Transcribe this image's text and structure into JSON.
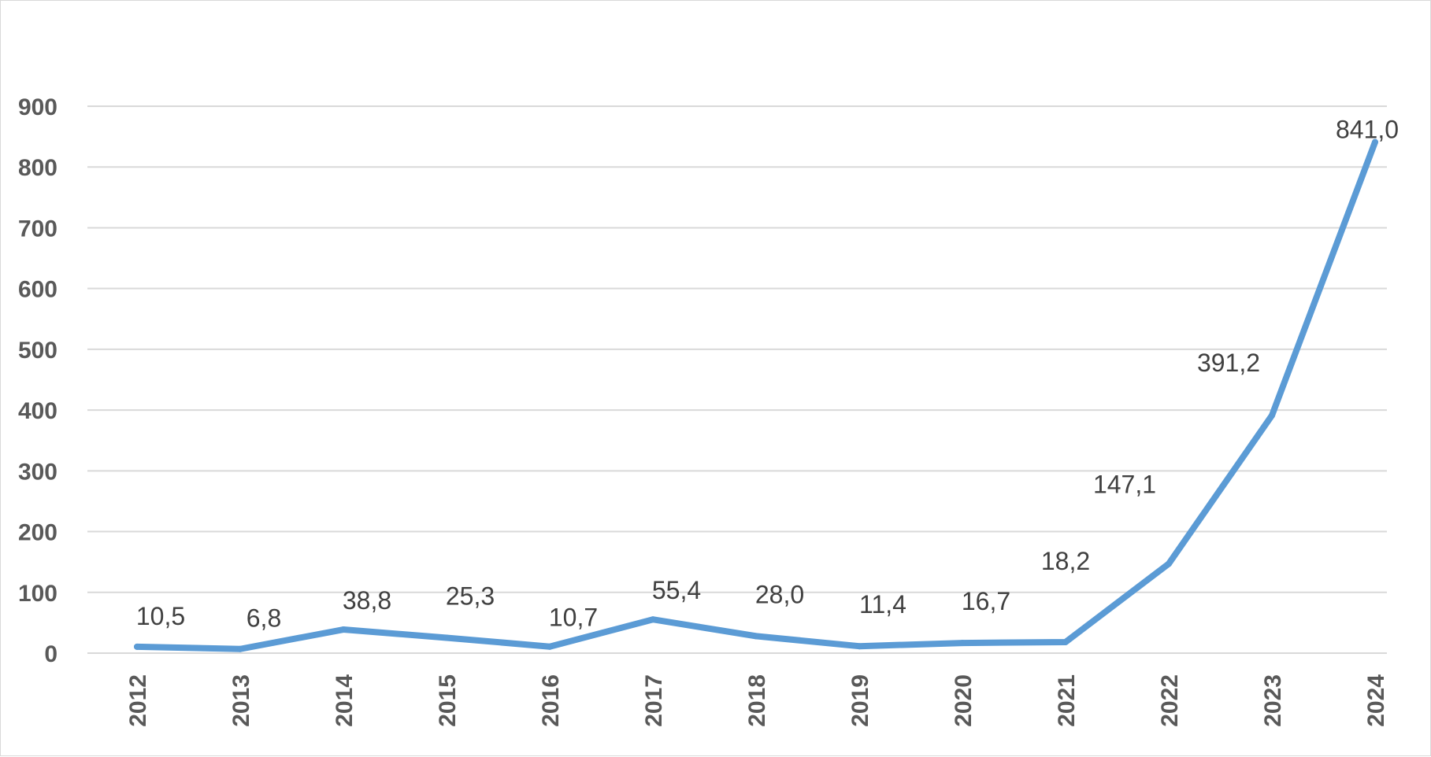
{
  "chart_data": {
    "type": "line",
    "title": "",
    "xlabel": "",
    "ylabel": "",
    "categories": [
      "2012",
      "2013",
      "2014",
      "2015",
      "2016",
      "2017",
      "2018",
      "2019",
      "2020",
      "2021",
      "2022",
      "2023",
      "2024"
    ],
    "series": [
      {
        "values": [
          10.5,
          6.8,
          38.8,
          25.3,
          10.7,
          55.4,
          28.0,
          11.4,
          16.7,
          18.2,
          147.1,
          391.2,
          841.0
        ],
        "data_labels": [
          "10,5",
          "6,8",
          "38,8",
          "25,3",
          "10,7",
          "55,4",
          "28,0",
          "11,4",
          "16,7",
          "18,2",
          "147,1",
          "391,2",
          "841,0"
        ],
        "color": "#5b9bd5"
      }
    ],
    "ylim": [
      0,
      900
    ],
    "yticks": [
      "0",
      "100",
      "200",
      "300",
      "400",
      "500",
      "600",
      "700",
      "800",
      "900"
    ],
    "grid": true,
    "legend": "none"
  }
}
